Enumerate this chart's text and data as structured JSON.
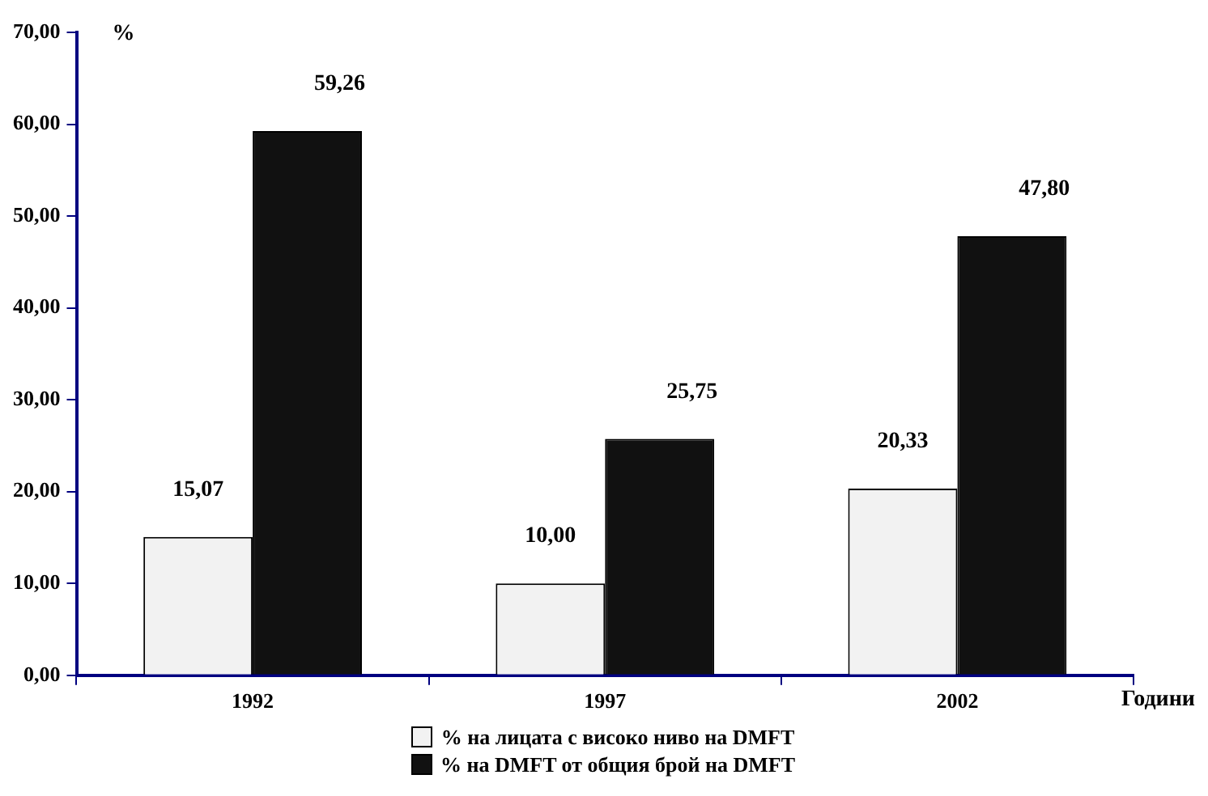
{
  "chart_data": {
    "type": "bar",
    "ylabel": "%",
    "xlabel": "Години",
    "categories": [
      "1992",
      "1997",
      "2002"
    ],
    "series": [
      {
        "name": "% на лицата с високо ниво на DMFT",
        "color": "#f2f2f2",
        "values": [
          15.07,
          10.0,
          20.33
        ],
        "value_labels": [
          "15,07",
          "10,00",
          "20,33"
        ]
      },
      {
        "name": "% на DMFT от общия брой на DMFT",
        "color": "#111111",
        "values": [
          59.26,
          25.75,
          47.8
        ],
        "value_labels": [
          "59,26",
          "25,75",
          "47,80"
        ]
      }
    ],
    "ylim": [
      0,
      70
    ],
    "yticks": [
      {
        "value": 0,
        "label": "0,00"
      },
      {
        "value": 10,
        "label": "10,00"
      },
      {
        "value": 20,
        "label": "20,00"
      },
      {
        "value": 30,
        "label": "30,00"
      },
      {
        "value": 40,
        "label": "40,00"
      },
      {
        "value": 50,
        "label": "50,00"
      },
      {
        "value": 60,
        "label": "60,00"
      },
      {
        "value": 70,
        "label": "70,00"
      }
    ],
    "grid": false,
    "legend": "bottom"
  }
}
